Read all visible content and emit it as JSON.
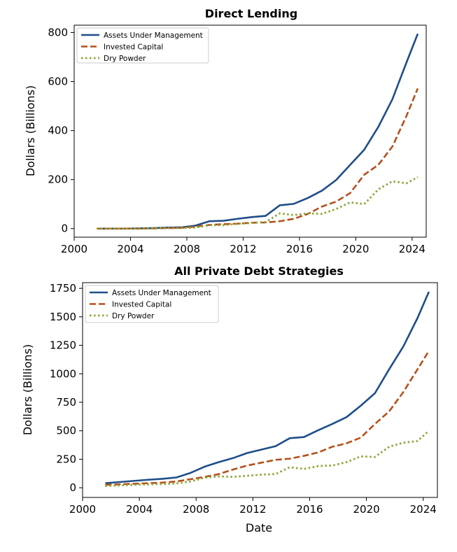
{
  "colors": {
    "aum": "#1f4e89",
    "invested": "#b5501c",
    "dry": "#8aa636"
  },
  "chart_data": [
    {
      "type": "line",
      "title": "Direct Lending",
      "xlabel": "",
      "ylabel": "Dollars (Billions)",
      "xlim": [
        2000,
        2025
      ],
      "ylim": [
        -35,
        830
      ],
      "xticks": [
        2000,
        2004,
        2008,
        2012,
        2016,
        2020,
        2024
      ],
      "xtick_labels": [
        "2000",
        "2004",
        "2008",
        "2012",
        "2016",
        "2020",
        "2024"
      ],
      "yticks": [
        0,
        200,
        400,
        600,
        800
      ],
      "ytick_labels": [
        "0",
        "200",
        "400",
        "600",
        "800"
      ],
      "legend_position": "top-left",
      "grid": false,
      "series": [
        {
          "name": "Assets Under Management",
          "style": "solid",
          "x": [
            2001.6,
            2002.6,
            2003.6,
            2004.6,
            2005.6,
            2006.6,
            2007.6,
            2008.6,
            2009.6,
            2010.6,
            2011.6,
            2012.6,
            2013.6,
            2014.6,
            2015.6,
            2016.6,
            2017.6,
            2018.6,
            2019.6,
            2020.6,
            2021.6,
            2022.6,
            2023.6,
            2024.4
          ],
          "values": [
            0,
            0,
            0,
            1,
            2,
            4,
            5,
            12,
            30,
            32,
            40,
            47,
            52,
            95,
            101,
            125,
            155,
            198,
            260,
            322,
            415,
            528,
            678,
            795
          ]
        },
        {
          "name": "Invested Capital",
          "style": "dashed",
          "x": [
            2001.6,
            2002.6,
            2003.6,
            2004.6,
            2005.6,
            2006.6,
            2007.6,
            2008.6,
            2009.6,
            2010.6,
            2011.6,
            2012.6,
            2013.6,
            2014.6,
            2015.6,
            2016.6,
            2017.6,
            2018.6,
            2019.6,
            2020.6,
            2021.6,
            2022.6,
            2023.6,
            2024.4
          ],
          "values": [
            0,
            0,
            0,
            0,
            1,
            2,
            3,
            8,
            15,
            18,
            20,
            24,
            25,
            30,
            40,
            60,
            90,
            110,
            145,
            220,
            260,
            335,
            460,
            572
          ]
        },
        {
          "name": "Dry Powder",
          "style": "dotted",
          "x": [
            2001.6,
            2002.6,
            2003.6,
            2004.6,
            2005.6,
            2006.6,
            2007.6,
            2008.6,
            2009.6,
            2010.6,
            2011.6,
            2012.6,
            2013.6,
            2014.6,
            2015.6,
            2016.6,
            2017.6,
            2018.6,
            2019.6,
            2020.6,
            2021.6,
            2022.6,
            2023.6,
            2024.4
          ],
          "values": [
            0,
            0,
            0,
            0,
            1,
            2,
            2,
            4,
            14,
            14,
            20,
            23,
            27,
            62,
            55,
            62,
            60,
            80,
            107,
            100,
            160,
            193,
            185,
            210
          ]
        }
      ]
    },
    {
      "type": "line",
      "title": "All Private Debt Strategies",
      "xlabel": "Date",
      "ylabel": "Dollars (Billions)",
      "xlim": [
        2000,
        2025
      ],
      "ylim": [
        -85,
        1800
      ],
      "xticks": [
        2000,
        2004,
        2008,
        2012,
        2016,
        2020,
        2024
      ],
      "xtick_labels": [
        "2000",
        "2004",
        "2008",
        "2012",
        "2016",
        "2020",
        "2024"
      ],
      "yticks": [
        0,
        250,
        500,
        750,
        1000,
        1250,
        1500,
        1750
      ],
      "ytick_labels": [
        "0",
        "250",
        "500",
        "750",
        "1000",
        "1250",
        "1500",
        "1750"
      ],
      "legend_position": "top-left",
      "grid": false,
      "series": [
        {
          "name": "Assets Under Management",
          "style": "solid",
          "x": [
            2001.6,
            2002.6,
            2003.6,
            2004.6,
            2005.6,
            2006.6,
            2007.6,
            2008.6,
            2009.6,
            2010.6,
            2011.6,
            2012.6,
            2013.6,
            2014.6,
            2015.6,
            2016.6,
            2017.6,
            2018.6,
            2019.6,
            2020.6,
            2021.6,
            2022.6,
            2023.6,
            2024.4
          ],
          "values": [
            40,
            50,
            60,
            70,
            78,
            90,
            130,
            185,
            225,
            260,
            305,
            335,
            365,
            435,
            445,
            505,
            560,
            620,
            720,
            830,
            1040,
            1240,
            1490,
            1720
          ]
        },
        {
          "name": "Invested Capital",
          "style": "dashed",
          "x": [
            2001.6,
            2002.6,
            2003.6,
            2004.6,
            2005.6,
            2006.6,
            2007.6,
            2008.6,
            2009.6,
            2010.6,
            2011.6,
            2012.6,
            2013.6,
            2014.6,
            2015.6,
            2016.6,
            2017.6,
            2018.6,
            2019.6,
            2020.6,
            2021.6,
            2022.6,
            2023.6,
            2024.4
          ],
          "values": [
            25,
            30,
            35,
            40,
            45,
            55,
            75,
            95,
            120,
            160,
            195,
            220,
            245,
            255,
            280,
            310,
            360,
            390,
            440,
            560,
            670,
            840,
            1040,
            1200
          ]
        },
        {
          "name": "Dry Powder",
          "style": "dotted",
          "x": [
            2001.6,
            2002.6,
            2003.6,
            2004.6,
            2005.6,
            2006.6,
            2007.6,
            2008.6,
            2009.6,
            2010.6,
            2011.6,
            2012.6,
            2013.6,
            2014.6,
            2015.6,
            2016.6,
            2017.6,
            2018.6,
            2019.6,
            2020.6,
            2021.6,
            2022.6,
            2023.6,
            2024.4
          ],
          "values": [
            15,
            20,
            25,
            30,
            33,
            38,
            55,
            88,
            100,
            95,
            105,
            115,
            120,
            180,
            165,
            190,
            195,
            225,
            275,
            270,
            360,
            395,
            410,
            500
          ]
        }
      ]
    }
  ]
}
